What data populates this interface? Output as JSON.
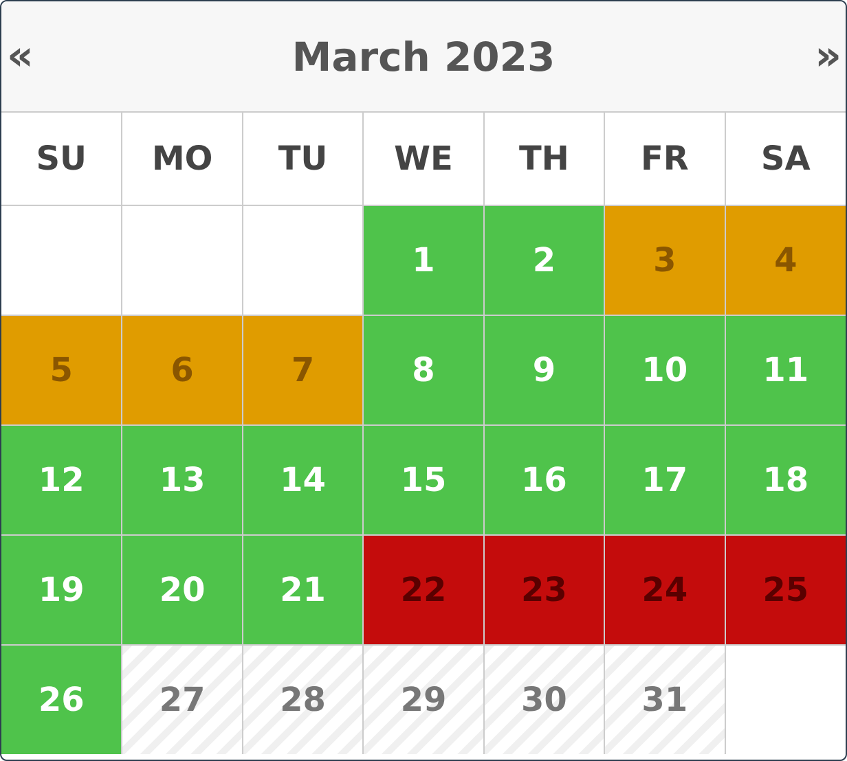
{
  "header": {
    "title": "March 2023",
    "prev_label": "«",
    "next_label": "»"
  },
  "weekdays": [
    "SU",
    "MO",
    "TU",
    "WE",
    "TH",
    "FR",
    "SA"
  ],
  "status_colors": {
    "available": "#4fc34b",
    "partial": "#e09c00",
    "booked": "#c40c0c",
    "disabled": "#f0f0f0"
  },
  "weeks": [
    [
      {
        "day": "",
        "status": "empty"
      },
      {
        "day": "",
        "status": "empty"
      },
      {
        "day": "",
        "status": "empty"
      },
      {
        "day": "1",
        "status": "available"
      },
      {
        "day": "2",
        "status": "available"
      },
      {
        "day": "3",
        "status": "partial"
      },
      {
        "day": "4",
        "status": "partial"
      }
    ],
    [
      {
        "day": "5",
        "status": "partial"
      },
      {
        "day": "6",
        "status": "partial"
      },
      {
        "day": "7",
        "status": "partial"
      },
      {
        "day": "8",
        "status": "available"
      },
      {
        "day": "9",
        "status": "available"
      },
      {
        "day": "10",
        "status": "available"
      },
      {
        "day": "11",
        "status": "available"
      }
    ],
    [
      {
        "day": "12",
        "status": "available"
      },
      {
        "day": "13",
        "status": "available"
      },
      {
        "day": "14",
        "status": "available"
      },
      {
        "day": "15",
        "status": "available"
      },
      {
        "day": "16",
        "status": "available"
      },
      {
        "day": "17",
        "status": "available"
      },
      {
        "day": "18",
        "status": "available"
      }
    ],
    [
      {
        "day": "19",
        "status": "available"
      },
      {
        "day": "20",
        "status": "available"
      },
      {
        "day": "21",
        "status": "available"
      },
      {
        "day": "22",
        "status": "booked"
      },
      {
        "day": "23",
        "status": "booked"
      },
      {
        "day": "24",
        "status": "booked"
      },
      {
        "day": "25",
        "status": "booked"
      }
    ],
    [
      {
        "day": "26",
        "status": "available"
      },
      {
        "day": "27",
        "status": "disabled"
      },
      {
        "day": "28",
        "status": "disabled"
      },
      {
        "day": "29",
        "status": "disabled"
      },
      {
        "day": "30",
        "status": "disabled"
      },
      {
        "day": "31",
        "status": "disabled"
      },
      {
        "day": "",
        "status": "empty"
      }
    ]
  ]
}
